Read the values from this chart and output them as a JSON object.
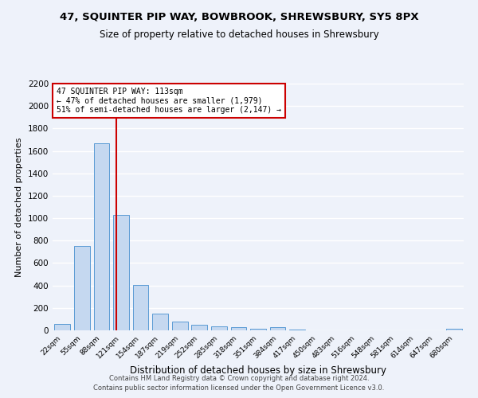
{
  "title": "47, SQUINTER PIP WAY, BOWBROOK, SHREWSBURY, SY5 8PX",
  "subtitle": "Size of property relative to detached houses in Shrewsbury",
  "xlabel": "Distribution of detached houses by size in Shrewsbury",
  "ylabel": "Number of detached properties",
  "bar_color": "#c5d8f0",
  "bar_edge_color": "#5b9bd5",
  "background_color": "#eef2fa",
  "grid_color": "#ffffff",
  "annotation_box_color": "#ffffff",
  "annotation_box_edge_color": "#cc0000",
  "red_line_color": "#cc0000",
  "categories": [
    "22sqm",
    "55sqm",
    "88sqm",
    "121sqm",
    "154sqm",
    "187sqm",
    "219sqm",
    "252sqm",
    "285sqm",
    "318sqm",
    "351sqm",
    "384sqm",
    "417sqm",
    "450sqm",
    "483sqm",
    "516sqm",
    "548sqm",
    "581sqm",
    "614sqm",
    "647sqm",
    "680sqm"
  ],
  "values": [
    55,
    750,
    1670,
    1030,
    405,
    150,
    80,
    50,
    35,
    25,
    15,
    25,
    5,
    0,
    0,
    0,
    0,
    0,
    0,
    0,
    15
  ],
  "property_label": "47 SQUINTER PIP WAY: 113sqm",
  "smaller_pct": 47,
  "smaller_count": 1979,
  "larger_pct": 51,
  "larger_count": 2147,
  "red_line_x": 2.75,
  "ylim": [
    0,
    2200
  ],
  "yticks": [
    0,
    200,
    400,
    600,
    800,
    1000,
    1200,
    1400,
    1600,
    1800,
    2000,
    2200
  ],
  "footnote1": "Contains HM Land Registry data © Crown copyright and database right 2024.",
  "footnote2": "Contains public sector information licensed under the Open Government Licence v3.0."
}
